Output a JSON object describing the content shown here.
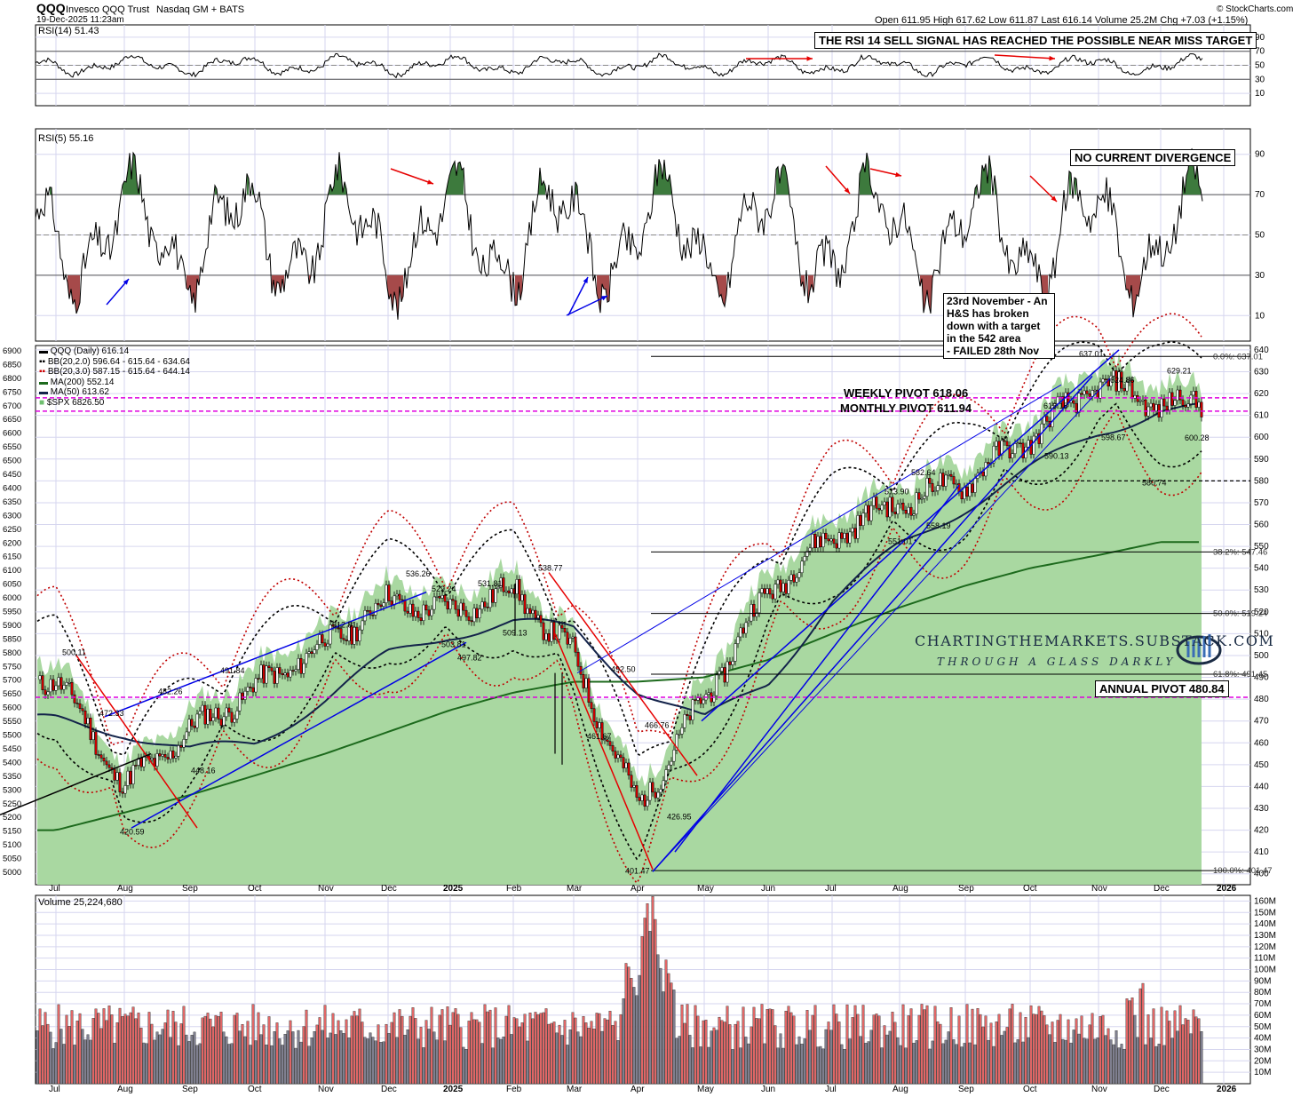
{
  "header": {
    "symbol": "QQQ",
    "name": "Invesco QQQ Trust",
    "exchange": "Nasdaq GM + BATS",
    "timestamp": "19-Dec-2025 11:23am",
    "credit": "© StockCharts.com",
    "quote": "Open 611.95  High 617.62  Low 611.87  Last 616.14  Volume 25.2M  Chg +7.03 (+1.15%)"
  },
  "colors": {
    "panel_bg": "#ffffff",
    "grid": "#d6d6ef",
    "price_fill": "#a9d8a1",
    "rsi_fill_high": "#3d7a3d",
    "rsi_fill_low": "#a64a4a",
    "pivot_magenta": "#e000e0",
    "trend_blue": "#0000e6",
    "trend_red": "#e60000",
    "ma200": "#1d6a1d",
    "ma50": "#13234a",
    "vol_up": "#e06666",
    "vol_down": "#7f7f8f"
  },
  "panels": {
    "rsi14": {
      "label": "RSI(14) 51.43",
      "ticks": [
        "90",
        "70",
        "50",
        "30",
        "10"
      ],
      "annotation": "THE RSI 14 SELL SIGNAL HAS REACHED THE POSSIBLE NEAR MISS TARGET"
    },
    "rsi5": {
      "label": "RSI(5) 55.16",
      "ticks": [
        "90",
        "70",
        "50",
        "30",
        "10"
      ],
      "annotation": "NO CURRENT DIVERGENCE"
    },
    "price": {
      "legend": [
        {
          "text": "QQQ (Daily) 616.14",
          "color": "#000000",
          "mark": "▬"
        },
        {
          "text": "BB(20,2.0) 596.64 - 615.64 - 634.64",
          "color": "#000000",
          "mark": "▪▪"
        },
        {
          "text": "BB(20,3.0) 587.15 - 615.64 - 644.14",
          "color": "#cc0000",
          "mark": "▪▪"
        },
        {
          "text": "MA(200) 552.14",
          "color": "#1d6a1d",
          "mark": "▬"
        },
        {
          "text": "MA(50) 613.62",
          "color": "#13234a",
          "mark": "▬"
        },
        {
          "text": "$SPX 6826.50",
          "color": "#6fbf6f",
          "mark": "■"
        }
      ],
      "right_ticks": [
        "640",
        "630",
        "620",
        "610",
        "600",
        "590",
        "580",
        "570",
        "560",
        "550",
        "540",
        "530",
        "520",
        "510",
        "500",
        "490",
        "480",
        "470",
        "460",
        "450",
        "440",
        "430",
        "420",
        "410",
        "400"
      ],
      "left_ticks": [
        "6900",
        "6850",
        "6800",
        "6750",
        "6700",
        "6650",
        "6600",
        "6550",
        "6500",
        "6450",
        "6400",
        "6350",
        "6300",
        "6250",
        "6200",
        "6150",
        "6100",
        "6050",
        "6000",
        "5950",
        "5900",
        "5850",
        "5800",
        "5750",
        "5700",
        "5650",
        "5600",
        "5550",
        "5500",
        "5450",
        "5400",
        "5350",
        "5300",
        "5250",
        "5200",
        "5150",
        "5100",
        "5050",
        "5000"
      ],
      "pivots": {
        "weekly": "WEEKLY PIVOT 618.06",
        "monthly": "MONTHLY PIVOT 611.94",
        "annual": "ANNUAL PIVOT 480.84"
      },
      "fib_labels": [
        "0.0%: 637.01",
        "38.2%: 547.46",
        "50.0%: 519.24",
        "61.8%: 491.45",
        "100.0%: 401.47"
      ],
      "hs_note": [
        "23rd November - An",
        "H&S has broken",
        "down with a target",
        "in the 542 area",
        "- FAILED 28th Nov"
      ],
      "price_labels": [
        "500.11",
        "472.33",
        "420.59",
        "482.26",
        "448.16",
        "491.84",
        "512.81",
        "536.26",
        "529.24",
        "503.81",
        "497.82",
        "531.81",
        "509.13",
        "538.77",
        "492.50",
        "461.67",
        "466.76",
        "401.47",
        "426.95",
        "558.19",
        "551.01",
        "573.90",
        "582.64",
        "590.13",
        "613.18",
        "637.01",
        "624.86",
        "598.67",
        "629.21",
        "580.74",
        "600.28"
      ],
      "brand_name": "CHARTINGTHEMARKETS.SUBSTACK.COM",
      "brand_tag": "THROUGH A GLASS DARKLY"
    },
    "volume": {
      "label": "Volume 25,224,680",
      "ticks": [
        "160M",
        "150M",
        "140M",
        "130M",
        "120M",
        "110M",
        "100M",
        "90M",
        "80M",
        "70M",
        "60M",
        "50M",
        "40M",
        "30M",
        "20M",
        "10M"
      ]
    },
    "x_axis": [
      "Jul",
      "Aug",
      "Sep",
      "Oct",
      "Nov",
      "Dec",
      "2025",
      "Feb",
      "Mar",
      "Apr",
      "May",
      "Jun",
      "Jul",
      "Aug",
      "Sep",
      "Oct",
      "Nov",
      "Dec",
      "2026"
    ]
  },
  "chart_data": {
    "type": "line",
    "title": "QQQ Invesco QQQ Trust Nasdaq GM + BATS",
    "x": [
      "Jul",
      "Aug",
      "Sep",
      "Oct",
      "Nov",
      "Dec",
      "2025",
      "Feb",
      "Mar",
      "Apr",
      "May",
      "Jun",
      "Jul",
      "Aug",
      "Sep",
      "Oct",
      "Nov",
      "Dec"
    ],
    "series": [
      {
        "name": "QQQ (Daily)",
        "values": [
          490,
          440,
          465,
          485,
          505,
          525,
          520,
          530,
          500,
          430,
          480,
          530,
          555,
          570,
          580,
          600,
          625,
          615
        ]
      },
      {
        "name": "MA(200)",
        "values": [
          420,
          428,
          436,
          445,
          455,
          465,
          475,
          483,
          488,
          488,
          490,
          498,
          510,
          522,
          532,
          540,
          546,
          552
        ]
      },
      {
        "name": "MA(50)",
        "values": [
          470,
          465,
          456,
          460,
          480,
          500,
          510,
          515,
          512,
          485,
          470,
          488,
          525,
          550,
          568,
          585,
          602,
          613
        ]
      }
    ],
    "pivots": {
      "weekly": 618.06,
      "monthly": 611.94,
      "annual": 480.84
    },
    "fib_levels": {
      "0.0%": 637.01,
      "38.2%": 547.46,
      "50.0%": 519.24,
      "61.8%": 491.45,
      "100.0%": 401.47
    },
    "ylim": [
      395,
      642
    ],
    "rsi14_last": 51.43,
    "rsi5_last": 55.16,
    "volume_last": 25224680,
    "volume_peak_month": "Apr",
    "volume_range": [
      0,
      165000000
    ],
    "grid": true,
    "legend_position": "top-left"
  }
}
